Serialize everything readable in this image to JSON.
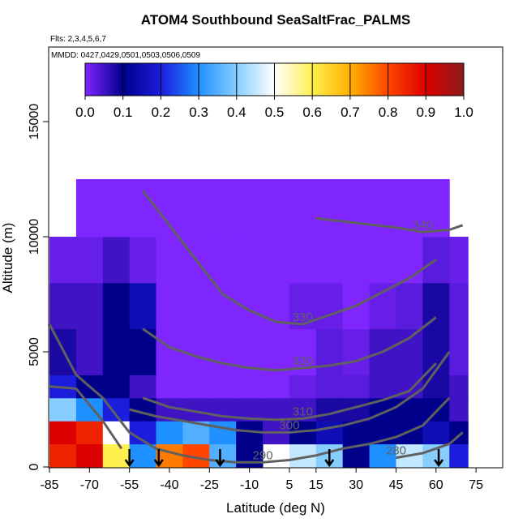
{
  "chart_data": {
    "type": "curtain",
    "title": "ATOM4 Southbound SeaSaltFrac_PALMS",
    "subtitle": "Flts: 2,3,4,5,6,7",
    "annotation": "MMDD: 0427,0429,0501,0503,0506,0509",
    "x_label": "Latitude (deg N)",
    "y_label": "Altitude (m)",
    "xlim": [
      -85,
      85
    ],
    "xticks": [
      -85,
      -70,
      -55,
      -40,
      -25,
      -10,
      5,
      15,
      30,
      45,
      60,
      75
    ],
    "ylim": [
      0,
      18240
    ],
    "yticks": [
      0,
      5000,
      10000,
      15000
    ],
    "x_edges": [
      -85,
      -75,
      -65,
      -55,
      -45,
      -35,
      -25,
      -15,
      -5,
      5,
      15,
      25,
      35,
      45,
      55,
      65,
      72
    ],
    "y_edges": [
      0,
      1000,
      2000,
      3000,
      4000,
      6000,
      8000,
      10000,
      12500
    ],
    "values": [
      [
        0.85,
        0.9,
        0.6,
        0.3,
        0.75,
        0.8,
        0.35,
        0.1,
        null,
        0.45,
        0.4,
        0.1,
        0.3,
        0.45,
        0.4,
        0.2
      ],
      [
        0.9,
        0.85,
        0.5,
        0.2,
        0.3,
        0.35,
        0.3,
        0.1,
        0.05,
        0.1,
        0.15,
        0.1,
        0.1,
        0.1,
        0.15,
        0.1
      ],
      [
        0.4,
        0.3,
        0.2,
        0.1,
        0.05,
        0.05,
        0.05,
        0.05,
        0.05,
        0.05,
        0.08,
        0.08,
        0.1,
        0.1,
        0.1,
        0.05
      ],
      [
        0.2,
        0.1,
        0.1,
        0.05,
        0,
        0,
        0,
        0,
        0,
        0.02,
        0.03,
        0.03,
        0.05,
        0.05,
        0.08,
        0.05
      ],
      [
        0.08,
        0.05,
        0.1,
        0.1,
        0,
        0,
        0,
        0,
        0,
        0,
        0.03,
        0.02,
        0.05,
        0.05,
        0.08,
        0.03
      ],
      [
        0.05,
        0.05,
        0.1,
        0.15,
        0,
        0,
        0,
        0,
        0,
        0.02,
        0.02,
        0,
        0.02,
        0.03,
        0.08,
        0.03
      ],
      [
        0.02,
        0.02,
        0.05,
        0.02,
        0,
        0,
        0,
        0,
        0,
        0,
        0,
        0,
        0,
        0,
        0.03,
        0.02
      ],
      [
        null,
        0,
        0,
        0,
        0,
        0,
        0,
        0,
        0,
        0,
        0,
        0,
        0,
        0,
        0,
        null
      ]
    ],
    "colorbar": {
      "ticks": [
        {
          "value": 0,
          "label": "0.0"
        },
        0.1,
        0.2,
        0.3,
        0.4,
        0.5,
        0.6,
        0.7,
        0.8,
        0.9,
        {
          "value": 1,
          "label": "1.0"
        }
      ],
      "colors": [
        "#7f26ff",
        "#00008b",
        "#1c1cdd",
        "#1e90ff",
        "#87ceff",
        "#ffffff",
        "#ffef4f",
        "#ffb000",
        "#ff4500",
        "#dd0000",
        "#8b1a1a"
      ]
    },
    "contour_color": "#606060",
    "contours": [
      {
        "level": 340,
        "x": [
          15,
          30,
          45,
          55,
          65,
          70
        ],
        "y": [
          10800,
          10600,
          10400,
          10200,
          10300,
          10500
        ]
      },
      {
        "level": 330,
        "x": [
          -50,
          -40,
          -30,
          -20,
          -10,
          0,
          10,
          20,
          30,
          40,
          50,
          60
        ],
        "y": [
          12000,
          10500,
          9000,
          7500,
          6800,
          6300,
          6200,
          6600,
          7000,
          7600,
          8200,
          9000
        ]
      },
      {
        "level": 320,
        "x": [
          -50,
          -40,
          -30,
          -20,
          -10,
          0,
          10,
          20,
          30,
          40,
          50,
          60
        ],
        "y": [
          6000,
          5200,
          4800,
          4500,
          4300,
          4200,
          4300,
          4400,
          4600,
          5000,
          5600,
          6500
        ]
      },
      {
        "level": 310,
        "x": [
          -50,
          -40,
          -30,
          -20,
          -10,
          0,
          10,
          20,
          30,
          40,
          50,
          60
        ],
        "y": [
          3000,
          2600,
          2400,
          2200,
          2100,
          2050,
          2100,
          2300,
          2600,
          2900,
          3300,
          4500
        ]
      },
      {
        "level": 300,
        "x": [
          -55,
          -45,
          -35,
          -25,
          -15,
          -5,
          5,
          15,
          25,
          35,
          45,
          55,
          65
        ],
        "y": [
          2500,
          2200,
          2000,
          1800,
          1600,
          1500,
          1500,
          1600,
          1800,
          2100,
          2600,
          3400,
          5000
        ]
      },
      {
        "level": 290,
        "x": [
          -85,
          -75,
          -65,
          -55,
          -45,
          -35,
          -25,
          -15,
          -5,
          5,
          15,
          25,
          35,
          45,
          55,
          65
        ],
        "y": [
          6200,
          4000,
          3000,
          1500,
          800,
          500,
          300,
          200,
          200,
          300,
          500,
          800,
          1000,
          1300,
          1800,
          3000
        ]
      },
      {
        "level": 280,
        "x": [
          -85,
          -75,
          -65,
          -58,
          null,
          45,
          55,
          65,
          70
        ],
        "y": [
          3500,
          3400,
          2000,
          800,
          null,
          400,
          600,
          1000,
          1500
        ]
      }
    ],
    "arrows_x": [
      -55,
      -44,
      -21,
      20,
      61
    ]
  }
}
